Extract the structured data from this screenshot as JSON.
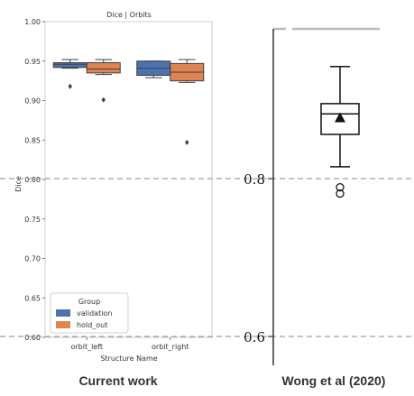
{
  "chart_data": [
    {
      "type": "box",
      "title": "Dice | Orbits",
      "xlabel": "Structure Name",
      "ylabel": "Dice",
      "ylim": [
        0.6,
        1.0
      ],
      "yticks": [
        "0.60",
        "0.65",
        "0.70",
        "0.75",
        "0.80",
        "0.85",
        "0.90",
        "0.95",
        "1.00"
      ],
      "grid": false,
      "legend": {
        "title": "Group",
        "placement": "bottom-left"
      },
      "categories": [
        "orbit_left",
        "orbit_right"
      ],
      "series": [
        {
          "name": "validation",
          "color": "#4c72b0",
          "boxes": [
            {
              "whislo": 0.941,
              "q1": 0.942,
              "med": 0.946,
              "q3": 0.948,
              "whishi": 0.952,
              "fliers": [
                0.918
              ]
            },
            {
              "whislo": 0.929,
              "q1": 0.932,
              "med": 0.941,
              "q3": 0.95,
              "whishi": 0.95,
              "fliers": []
            }
          ]
        },
        {
          "name": "hold_out",
          "color": "#dd8452",
          "boxes": [
            {
              "whislo": 0.933,
              "q1": 0.935,
              "med": 0.94,
              "q3": 0.948,
              "whishi": 0.952,
              "fliers": [
                0.901
              ]
            },
            {
              "whislo": 0.923,
              "q1": 0.925,
              "med": 0.936,
              "q3": 0.947,
              "whishi": 0.952,
              "fliers": [
                0.847
              ]
            }
          ]
        }
      ],
      "reference_lines": [
        0.8,
        0.6
      ],
      "caption": "Current work"
    },
    {
      "type": "box",
      "yticks": [
        "0.8",
        "0.6"
      ],
      "box": {
        "whislo": 0.815,
        "q1": 0.856,
        "med": 0.882,
        "q3": 0.895,
        "whishi": 0.942,
        "mean": 0.876,
        "fliers": [
          0.789,
          0.781
        ]
      },
      "caption": "Wong et al (2020)"
    }
  ]
}
